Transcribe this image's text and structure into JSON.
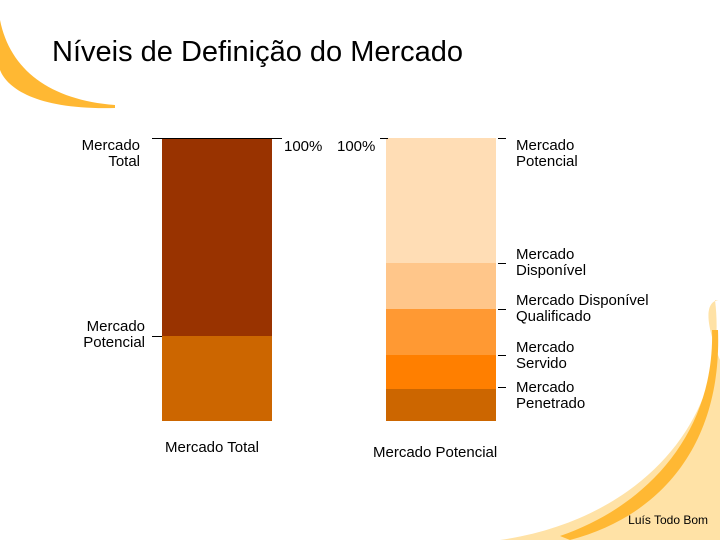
{
  "title": "Níveis de Definição do Mercado",
  "left_column": {
    "caption": "Mercado Total",
    "top_label": "Mercado\nTotal",
    "mid_label": "Mercado\nPotencial",
    "pct_label": "100%",
    "segments": [
      {
        "name": "Mercado Total",
        "fraction": 0.7,
        "color": "#993300"
      },
      {
        "name": "Mercado Potencial",
        "fraction": 0.3,
        "color": "#CC6600"
      }
    ]
  },
  "right_column": {
    "caption": "Mercado Potencial",
    "pct_label": "100%",
    "segments": [
      {
        "name": "Mercado Potencial",
        "label": "Mercado\nPotencial",
        "fraction": 0.443,
        "color": "#FFDDB5"
      },
      {
        "name": "Mercado Disponível",
        "label": "Mercado\nDisponível",
        "fraction": 0.164,
        "color": "#FFC68A"
      },
      {
        "name": "Mercado Disponível Qualificado",
        "label": "Mercado Disponível\nQualificado",
        "fraction": 0.164,
        "color": "#FF9933"
      },
      {
        "name": "Mercado Servido",
        "label": "Mercado\nServido",
        "fraction": 0.121,
        "color": "#FF7F00"
      },
      {
        "name": "Mercado Penetrado",
        "label": "Mercado\nPenetrado",
        "fraction": 0.108,
        "color": "#CC6600"
      }
    ]
  },
  "colors": {
    "decoration_orange": "#FFB833",
    "decoration_light": "#FFE2A6"
  },
  "footer": {
    "author": "Luís Todo Bom"
  }
}
